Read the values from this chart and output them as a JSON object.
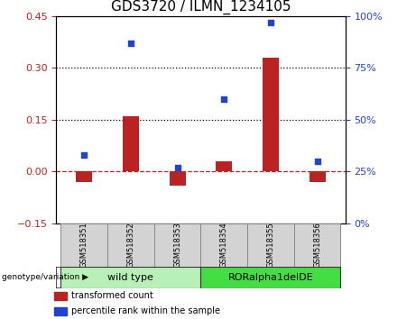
{
  "title": "GDS3720 / ILMN_1234105",
  "samples": [
    "GSM518351",
    "GSM518352",
    "GSM518353",
    "GSM518354",
    "GSM518355",
    "GSM518356"
  ],
  "transformed_count": [
    -0.03,
    0.16,
    -0.04,
    0.03,
    0.33,
    -0.03
  ],
  "percentile_rank": [
    33,
    87,
    27,
    60,
    97,
    30
  ],
  "ylim_left": [
    -0.15,
    0.45
  ],
  "ylim_right": [
    0,
    100
  ],
  "yticks_left": [
    -0.15,
    0.0,
    0.15,
    0.3,
    0.45
  ],
  "yticks_right": [
    0,
    25,
    50,
    75,
    100
  ],
  "dotted_lines": [
    0.15,
    0.3
  ],
  "bar_color": "#bb2222",
  "dot_color": "#2244cc",
  "group1_label": "wild type",
  "group2_label": "RORalpha1delDE",
  "group1_color": "#b8f0b8",
  "group2_color": "#44dd44",
  "group1_bg": "#d3d3d3",
  "group1_indices": [
    0,
    1,
    2
  ],
  "group2_indices": [
    3,
    4,
    5
  ],
  "genotype_label": "genotype/variation",
  "legend_bar_label": "transformed count",
  "legend_dot_label": "percentile rank within the sample",
  "bar_width": 0.35,
  "ylabel_left_color": "#bb2222",
  "ylabel_right_color": "#2244cc",
  "title_fontsize": 11,
  "tick_fontsize": 8,
  "label_fontsize": 8
}
